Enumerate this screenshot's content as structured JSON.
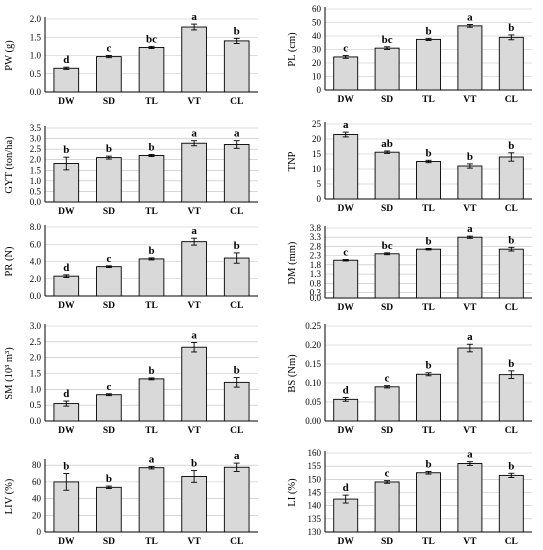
{
  "chart_data": [
    {
      "type": "bar",
      "ylabel": "PW (g)",
      "categories": [
        "DW",
        "SD",
        "TL",
        "VT",
        "CL"
      ],
      "values": [
        0.65,
        0.97,
        1.22,
        1.78,
        1.4
      ],
      "errors": [
        0.03,
        0.03,
        0.03,
        0.08,
        0.07
      ],
      "letters": [
        "d",
        "c",
        "bc",
        "a",
        "b"
      ],
      "ylim": [
        0,
        2
      ],
      "yticks": [
        "0.0",
        "0.5",
        "1.0",
        "1.5",
        "2.0"
      ],
      "grid": true
    },
    {
      "type": "bar",
      "ylabel": "PL (cm)",
      "categories": [
        "DW",
        "SD",
        "TL",
        "VT",
        "CL"
      ],
      "values": [
        24.5,
        31,
        37.5,
        47.5,
        39
      ],
      "errors": [
        1,
        1,
        0.8,
        1,
        1.8
      ],
      "letters": [
        "c",
        "bc",
        "b",
        "a",
        "b"
      ],
      "ylim": [
        0,
        60
      ],
      "yticks": [
        "0",
        "10",
        "20",
        "30",
        "40",
        "50",
        "60"
      ],
      "grid": true
    },
    {
      "type": "bar",
      "ylabel": "GYT (ton/ha)",
      "categories": [
        "DW",
        "SD",
        "TL",
        "VT",
        "CL"
      ],
      "values": [
        1.82,
        2.1,
        2.2,
        2.78,
        2.72
      ],
      "errors": [
        0.3,
        0.07,
        0.05,
        0.12,
        0.18
      ],
      "letters": [
        "b",
        "b",
        "b",
        "a",
        "a"
      ],
      "ylim": [
        0,
        3.5
      ],
      "yticks": [
        "0.0",
        "0.5",
        "1.0",
        "1.5",
        "2.0",
        "2.5",
        "3.0",
        "3.5"
      ],
      "grid": true
    },
    {
      "type": "bar",
      "ylabel": "TNP",
      "categories": [
        "DW",
        "SD",
        "TL",
        "VT",
        "CL"
      ],
      "values": [
        21.5,
        15.6,
        12.5,
        11,
        14
      ],
      "errors": [
        0.8,
        0.4,
        0.4,
        0.7,
        1.4
      ],
      "letters": [
        "a",
        "ab",
        "b",
        "b",
        "b"
      ],
      "ylim": [
        0,
        25
      ],
      "yticks": [
        "0",
        "5",
        "10",
        "15",
        "20",
        "25"
      ],
      "grid": true
    },
    {
      "type": "bar",
      "ylabel": "PR (N)",
      "categories": [
        "DW",
        "SD",
        "TL",
        "VT",
        "CL"
      ],
      "values": [
        2.3,
        3.4,
        4.3,
        6.3,
        4.4
      ],
      "errors": [
        0.15,
        0.1,
        0.12,
        0.4,
        0.6
      ],
      "letters": [
        "d",
        "c",
        "b",
        "a",
        "b"
      ],
      "ylim": [
        0,
        8
      ],
      "yticks": [
        "0.0",
        "2.0",
        "4.0",
        "6.0",
        "8.0"
      ],
      "grid": true
    },
    {
      "type": "bar",
      "ylabel": "DM (mm)",
      "categories": [
        "DW",
        "SD",
        "TL",
        "VT",
        "CL"
      ],
      "values": [
        2.05,
        2.4,
        2.65,
        3.3,
        2.65
      ],
      "errors": [
        0.04,
        0.05,
        0.04,
        0.06,
        0.1
      ],
      "letters": [
        "c",
        "bc",
        "b",
        "a",
        "b"
      ],
      "ylim": [
        0,
        3.8
      ],
      "yticks": [
        "0.0",
        "0.3",
        "0.8",
        "1.3",
        "1.8",
        "2.3",
        "2.8",
        "3.3",
        "3.8"
      ],
      "yticks_values": [
        0,
        0.3,
        0.8,
        1.3,
        1.8,
        2.3,
        2.8,
        3.3,
        3.8
      ],
      "grid": true
    },
    {
      "type": "bar",
      "ylabel": "SM (10³ m³)",
      "categories": [
        "DW",
        "SD",
        "TL",
        "VT",
        "CL"
      ],
      "values": [
        0.55,
        0.83,
        1.33,
        2.33,
        1.22
      ],
      "errors": [
        0.08,
        0.03,
        0.03,
        0.15,
        0.15
      ],
      "letters": [
        "d",
        "c",
        "b",
        "a",
        "b"
      ],
      "ylim": [
        0,
        3
      ],
      "yticks": [
        "0.0",
        "0.5",
        "1.0",
        "1.5",
        "2.0",
        "2.5",
        "3.0"
      ],
      "grid": true
    },
    {
      "type": "bar",
      "ylabel": "BS (Nm)",
      "categories": [
        "DW",
        "SD",
        "TL",
        "VT",
        "CL"
      ],
      "values": [
        0.057,
        0.09,
        0.123,
        0.192,
        0.122
      ],
      "errors": [
        0.005,
        0.003,
        0.004,
        0.01,
        0.01
      ],
      "letters": [
        "d",
        "c",
        "b",
        "a",
        "b"
      ],
      "ylim": [
        0,
        0.25
      ],
      "yticks": [
        "0.00",
        "0.05",
        "0.10",
        "0.15",
        "0.20",
        "0.25"
      ],
      "grid": true
    },
    {
      "type": "bar",
      "ylabel": "LIV (%)",
      "categories": [
        "DW",
        "SD",
        "TL",
        "VT",
        "CL"
      ],
      "values": [
        60,
        53.5,
        77,
        66.5,
        77.5
      ],
      "errors": [
        10,
        1.5,
        1.5,
        7,
        5
      ],
      "letters": [
        "b",
        "b",
        "a",
        "b",
        "a"
      ],
      "ylim": [
        0,
        85
      ],
      "yticks": [
        "0",
        "20",
        "40",
        "60",
        "80"
      ],
      "yticks_values": [
        0,
        20,
        40,
        60,
        80
      ],
      "grid": true
    },
    {
      "type": "bar",
      "ylabel": "LI (%)",
      "categories": [
        "DW",
        "SD",
        "TL",
        "VT",
        "CL"
      ],
      "values": [
        142.5,
        149,
        152.5,
        156,
        151.5
      ],
      "errors": [
        1.5,
        0.5,
        0.5,
        0.7,
        0.8
      ],
      "letters": [
        "d",
        "c",
        "b",
        "a",
        "b"
      ],
      "ylim": [
        130,
        160
      ],
      "yticks": [
        "130",
        "135",
        "140",
        "145",
        "150",
        "155",
        "160"
      ],
      "grid": true
    }
  ]
}
